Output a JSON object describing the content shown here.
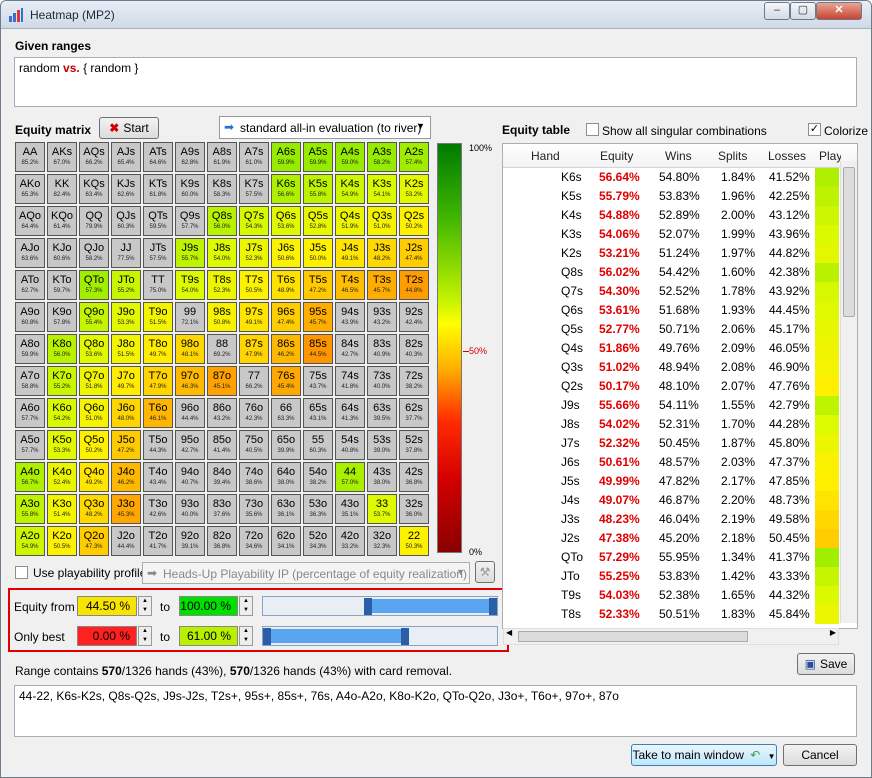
{
  "window": {
    "title": "Heatmap (MP2)",
    "minimize": "–",
    "maximize": "▢",
    "close": "✕"
  },
  "given_ranges": {
    "label": "Given ranges",
    "hero": "random",
    "vs": "vs.",
    "villain": "{ random }"
  },
  "equity_matrix": {
    "label": "Equity matrix",
    "start_button": "Start",
    "evaluation": "standard all-in evaluation (to river)"
  },
  "scale": {
    "top": "100%",
    "mid": "50%",
    "bottom": "0%"
  },
  "matrix_rows": [
    [
      "AA 85.2%",
      "AKs 67.0%",
      "AQs 66.2%",
      "AJs 65.4%",
      "ATs 64.6%",
      "A9s 62.8%",
      "A8s 61.9%",
      "A7s 61.0%",
      "A6s 59.9%",
      "A5s 59.9%",
      "A4s 59.0%",
      "A3s 58.2%",
      "A2s 57.4%"
    ],
    [
      "AKo 65.3%",
      "KK 82.4%",
      "KQs 63.4%",
      "KJs 62.6%",
      "KTs 61.8%",
      "K9s 60.0%",
      "K8s 58.3%",
      "K7s 57.5%",
      "K6s 56.6%",
      "K5s 55.8%",
      "K4s 54.9%",
      "K3s 54.1%",
      "K2s 53.2%"
    ],
    [
      "AQo 64.4%",
      "KQo 61.4%",
      "QQ 79.9%",
      "QJs 60.3%",
      "QTs 59.5%",
      "Q9s 57.7%",
      "Q8s 56.0%",
      "Q7s 54.3%",
      "Q6s 53.6%",
      "Q5s 52.8%",
      "Q4s 51.9%",
      "Q3s 51.0%",
      "Q2s 50.2%"
    ],
    [
      "AJo 63.6%",
      "KJo 60.6%",
      "QJo 58.2%",
      "JJ 77.5%",
      "JTs 57.5%",
      "J9s 55.7%",
      "J8s 54.0%",
      "J7s 52.3%",
      "J6s 50.6%",
      "J5s 50.0%",
      "J4s 49.1%",
      "J3s 48.2%",
      "J2s 47.4%"
    ],
    [
      "ATo 62.7%",
      "KTo 59.7%",
      "QTo 57.3%",
      "JTo 55.2%",
      "TT 75.0%",
      "T9s 54.0%",
      "T8s 52.3%",
      "T7s 50.5%",
      "T6s 48.9%",
      "T5s 47.2%",
      "T4s 46.5%",
      "T3s 45.7%",
      "T2s 44.8%"
    ],
    [
      "A9o 60.8%",
      "K9o 57.8%",
      "Q9o 55.4%",
      "J9o 53.3%",
      "T9o 51.5%",
      "99 72.1%",
      "98s 50.8%",
      "97s 49.1%",
      "96s 47.4%",
      "95s 45.7%",
      "94s 43.9%",
      "93s 43.2%",
      "92s 42.4%"
    ],
    [
      "A8o 59.9%",
      "K8o 56.0%",
      "Q8o 53.6%",
      "J8o 51.5%",
      "T8o 49.7%",
      "98o 48.1%",
      "88 69.2%",
      "87s 47.9%",
      "86s 46.2%",
      "85s 44.5%",
      "84s 42.7%",
      "83s 40.9%",
      "82s 40.3%"
    ],
    [
      "A7o 58.8%",
      "K7o 55.2%",
      "Q7o 51.8%",
      "J7o 49.7%",
      "T7o 47.9%",
      "97o 46.3%",
      "87o 45.1%",
      "77 66.2%",
      "76s 45.4%",
      "75s 43.7%",
      "74s 41.8%",
      "73s 40.0%",
      "72s 38.2%"
    ],
    [
      "A6o 57.7%",
      "K6o 54.2%",
      "Q6o 51.0%",
      "J6o 48.0%",
      "T6o 46.1%",
      "96o 44.4%",
      "86o 43.2%",
      "76o 42.3%",
      "66 63.3%",
      "65s 43.1%",
      "64s 41.3%",
      "63s 39.5%",
      "62s 37.7%"
    ],
    [
      "A5o 57.7%",
      "K5o 53.3%",
      "Q5o 50.2%",
      "J5o 47.2%",
      "T5o 44.3%",
      "95o 42.7%",
      "85o 41.4%",
      "75o 40.5%",
      "65o 39.9%",
      "55 60.3%",
      "54s 40.8%",
      "53s 39.0%",
      "52s 37.8%"
    ],
    [
      "A4o 56.7%",
      "K4o 52.4%",
      "Q4o 49.2%",
      "J4o 46.2%",
      "T4o 43.4%",
      "94o 40.7%",
      "84o 39.4%",
      "74o 38.6%",
      "64o 38.0%",
      "54o 38.2%",
      "44 57.0%",
      "43s 38.0%",
      "42s 36.8%"
    ],
    [
      "A3o 55.8%",
      "K3o 51.4%",
      "Q3o 48.2%",
      "J3o 45.3%",
      "T3o 42.6%",
      "93o 40.0%",
      "83o 37.6%",
      "73o 35.6%",
      "63o 36.1%",
      "53o 36.3%",
      "43o 35.1%",
      "33 53.7%",
      "32s 36.0%"
    ],
    [
      "A2o 54.9%",
      "K2o 50.5%",
      "Q2o 47.3%",
      "J2o 44.4%",
      "T2o 41.7%",
      "92o 39.1%",
      "82o 36.8%",
      "72o 34.6%",
      "62o 34.1%",
      "52o 34.3%",
      "42o 33.2%",
      "32o 32.3%",
      "22 50.3%"
    ]
  ],
  "matrix_selected": [
    [
      0,
      0,
      0,
      0,
      0,
      0,
      0,
      0,
      1,
      1,
      1,
      1,
      1
    ],
    [
      0,
      0,
      0,
      0,
      0,
      0,
      0,
      0,
      1,
      1,
      1,
      1,
      1
    ],
    [
      0,
      0,
      0,
      0,
      0,
      0,
      1,
      1,
      1,
      1,
      1,
      1,
      1
    ],
    [
      0,
      0,
      0,
      0,
      0,
      1,
      1,
      1,
      1,
      1,
      1,
      1,
      1
    ],
    [
      0,
      0,
      1,
      1,
      0,
      1,
      1,
      1,
      1,
      1,
      1,
      1,
      1
    ],
    [
      0,
      0,
      1,
      1,
      1,
      0,
      1,
      1,
      1,
      1,
      0,
      0,
      0
    ],
    [
      0,
      1,
      1,
      1,
      1,
      1,
      0,
      1,
      1,
      1,
      0,
      0,
      0
    ],
    [
      0,
      1,
      1,
      1,
      1,
      1,
      1,
      0,
      1,
      0,
      0,
      0,
      0
    ],
    [
      0,
      1,
      1,
      1,
      1,
      0,
      0,
      0,
      0,
      0,
      0,
      0,
      0
    ],
    [
      0,
      1,
      1,
      1,
      0,
      0,
      0,
      0,
      0,
      0,
      0,
      0,
      0
    ],
    [
      1,
      1,
      1,
      1,
      0,
      0,
      0,
      0,
      0,
      0,
      1,
      0,
      0
    ],
    [
      1,
      1,
      1,
      1,
      0,
      0,
      0,
      0,
      0,
      0,
      0,
      1,
      0
    ],
    [
      1,
      1,
      1,
      0,
      0,
      0,
      0,
      0,
      0,
      0,
      0,
      0,
      1
    ]
  ],
  "playability": {
    "label": "Use playability profile:",
    "profile": "Heads-Up Playability IP  (percentage of equity realization)"
  },
  "filters": {
    "equity_from_label": "Equity from",
    "equity_from": "44.50 %",
    "equity_to_label": "to",
    "equity_to": "100.00 %",
    "equity_slider_low": 0.445,
    "equity_slider_high": 1.0,
    "only_best_label": "Only best",
    "only_best_from": "0.00 %",
    "only_best_to_label": "to",
    "only_best_to": "61.00 %",
    "only_best_slider_low": 0.0,
    "only_best_slider_high": 0.61,
    "equity_from_color": "#f7e400",
    "equity_to_color": "#00e000",
    "only_best_from_color": "#ff2020",
    "only_best_to_color": "#b8f000"
  },
  "equity_table": {
    "label": "Equity table",
    "show_all_label": "Show all singular combinations",
    "colorize_label": "Colorize",
    "colorize_mark": "✓",
    "columns": [
      "Hand",
      "Equity",
      "Wins",
      "Splits",
      "Losses",
      "Play"
    ],
    "rows": [
      [
        "K6s",
        "56.64%",
        "54.80%",
        "1.84%",
        "41.52%"
      ],
      [
        "K5s",
        "55.79%",
        "53.83%",
        "1.96%",
        "42.25%"
      ],
      [
        "K4s",
        "54.88%",
        "52.89%",
        "2.00%",
        "43.12%"
      ],
      [
        "K3s",
        "54.06%",
        "52.07%",
        "1.99%",
        "43.96%"
      ],
      [
        "K2s",
        "53.21%",
        "51.24%",
        "1.97%",
        "44.82%"
      ],
      [
        "Q8s",
        "56.02%",
        "54.42%",
        "1.60%",
        "42.38%"
      ],
      [
        "Q7s",
        "54.30%",
        "52.52%",
        "1.78%",
        "43.92%"
      ],
      [
        "Q6s",
        "53.61%",
        "51.68%",
        "1.93%",
        "44.45%"
      ],
      [
        "Q5s",
        "52.77%",
        "50.71%",
        "2.06%",
        "45.17%"
      ],
      [
        "Q4s",
        "51.86%",
        "49.76%",
        "2.09%",
        "46.05%"
      ],
      [
        "Q3s",
        "51.02%",
        "48.94%",
        "2.08%",
        "46.90%"
      ],
      [
        "Q2s",
        "50.17%",
        "48.10%",
        "2.07%",
        "47.76%"
      ],
      [
        "J9s",
        "55.66%",
        "54.11%",
        "1.55%",
        "42.79%"
      ],
      [
        "J8s",
        "54.02%",
        "52.31%",
        "1.70%",
        "44.28%"
      ],
      [
        "J7s",
        "52.32%",
        "50.45%",
        "1.87%",
        "45.80%"
      ],
      [
        "J6s",
        "50.61%",
        "48.57%",
        "2.03%",
        "47.37%"
      ],
      [
        "J5s",
        "49.99%",
        "47.82%",
        "2.17%",
        "47.85%"
      ],
      [
        "J4s",
        "49.07%",
        "46.87%",
        "2.20%",
        "48.73%"
      ],
      [
        "J3s",
        "48.23%",
        "46.04%",
        "2.19%",
        "49.58%"
      ],
      [
        "J2s",
        "47.38%",
        "45.20%",
        "2.18%",
        "50.45%"
      ],
      [
        "QTo",
        "57.29%",
        "55.95%",
        "1.34%",
        "41.37%"
      ],
      [
        "JTo",
        "55.25%",
        "53.83%",
        "1.42%",
        "43.33%"
      ],
      [
        "T9s",
        "54.03%",
        "52.38%",
        "1.65%",
        "44.32%"
      ],
      [
        "T8s",
        "52.33%",
        "50.51%",
        "1.83%",
        "45.84%"
      ]
    ]
  },
  "summary": {
    "prefix": "Range contains ",
    "a": "570",
    "b": "/1326 hands (43%), ",
    "c": "570",
    "d": "/1326 hands (43%) with card removal."
  },
  "range_text": "44-22, K6s-K2s, Q8s-Q2s, J9s-J2s, T2s+, 95s+, 85s+, 76s, A4o-A2o, K8o-K2o, QTo-Q2o, J3o+, T6o+, 97o+, 87o",
  "buttons": {
    "save": "Save",
    "main_window": "Take to main window",
    "cancel": "Cancel"
  }
}
